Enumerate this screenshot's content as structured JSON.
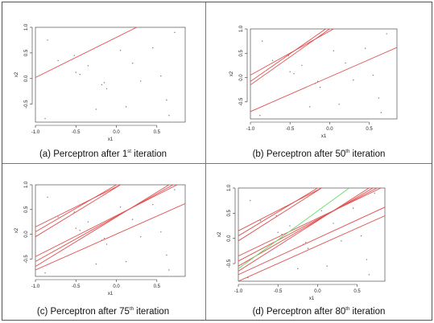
{
  "chart_data": [
    {
      "type": "scatter",
      "caption_prefix": "(a)  Perceptron after 1",
      "caption_ordinal": "st",
      "caption_suffix": " iteration",
      "xlabel": "x1",
      "ylabel": "x2",
      "xlim": [
        -1.0,
        0.85
      ],
      "ylim": [
        -0.85,
        1.0
      ],
      "xticks": [
        "-1.0",
        "-0.5",
        "0.0",
        "0.5"
      ],
      "yticks": [
        "-0.5",
        "0.0",
        "0.5",
        "1.0"
      ],
      "points": [
        [
          -0.85,
          0.75
        ],
        [
          -0.72,
          0.35
        ],
        [
          -0.52,
          0.45
        ],
        [
          -0.5,
          0.12
        ],
        [
          -0.45,
          0.08
        ],
        [
          -0.25,
          -0.6
        ],
        [
          -0.18,
          -0.12
        ],
        [
          -0.15,
          -0.08
        ],
        [
          -0.12,
          -0.2
        ],
        [
          0.05,
          0.55
        ],
        [
          0.12,
          -0.55
        ],
        [
          0.3,
          -0.05
        ],
        [
          0.45,
          0.6
        ],
        [
          0.55,
          0.05
        ],
        [
          0.62,
          -0.42
        ],
        [
          0.65,
          -0.72
        ],
        [
          0.72,
          0.9
        ],
        [
          -0.88,
          -0.78
        ],
        [
          -0.35,
          0.25
        ],
        [
          0.2,
          0.3
        ]
      ],
      "lines": [
        {
          "color": "#e05050",
          "points": [
            [
              -1.0,
              0.02
            ],
            [
              0.25,
              1.0
            ]
          ]
        }
      ]
    },
    {
      "type": "scatter",
      "caption_prefix": "(b)  Perceptron after 50",
      "caption_ordinal": "th",
      "caption_suffix": " iteration",
      "xlabel": "x1",
      "ylabel": "x2",
      "xlim": [
        -1.0,
        0.85
      ],
      "ylim": [
        -0.85,
        1.0
      ],
      "xticks": [
        "-1.0",
        "-0.5",
        "0.0",
        "0.5"
      ],
      "yticks": [
        "-0.5",
        "0.0",
        "0.5",
        "1.0"
      ],
      "points": [
        [
          -0.85,
          0.75
        ],
        [
          -0.72,
          0.35
        ],
        [
          -0.52,
          0.45
        ],
        [
          -0.5,
          0.12
        ],
        [
          -0.45,
          0.08
        ],
        [
          -0.25,
          -0.6
        ],
        [
          -0.18,
          -0.12
        ],
        [
          -0.15,
          -0.08
        ],
        [
          -0.12,
          -0.2
        ],
        [
          0.05,
          0.55
        ],
        [
          0.12,
          -0.55
        ],
        [
          0.3,
          -0.05
        ],
        [
          0.45,
          0.6
        ],
        [
          0.55,
          0.05
        ],
        [
          0.62,
          -0.42
        ],
        [
          0.65,
          -0.72
        ],
        [
          0.72,
          0.9
        ],
        [
          -0.88,
          -0.78
        ],
        [
          -0.35,
          0.25
        ],
        [
          0.2,
          0.3
        ]
      ],
      "lines": [
        {
          "color": "#e05050",
          "points": [
            [
              -1.0,
              0.05
            ],
            [
              0.05,
              1.0
            ]
          ]
        },
        {
          "color": "#e05050",
          "points": [
            [
              -1.0,
              -0.15
            ],
            [
              0.0,
              1.0
            ]
          ]
        },
        {
          "color": "#e05050",
          "points": [
            [
              -1.0,
              -0.08
            ],
            [
              -0.05,
              1.0
            ]
          ]
        },
        {
          "color": "#e05050",
          "points": [
            [
              -1.0,
              -0.7
            ],
            [
              0.85,
              0.62
            ]
          ]
        }
      ]
    },
    {
      "type": "scatter",
      "caption_prefix": "(c)  Perceptron after 75",
      "caption_ordinal": "th",
      "caption_suffix": " iteration",
      "xlabel": "x1",
      "ylabel": "x2",
      "xlim": [
        -1.0,
        0.85
      ],
      "ylim": [
        -0.85,
        1.0
      ],
      "xticks": [
        "-1.0",
        "-0.5",
        "0.0",
        "0.5"
      ],
      "yticks": [
        "-0.5",
        "0.0",
        "0.5",
        "1.0"
      ],
      "points": [
        [
          -0.85,
          0.75
        ],
        [
          -0.72,
          0.35
        ],
        [
          -0.52,
          0.45
        ],
        [
          -0.5,
          0.12
        ],
        [
          -0.45,
          0.08
        ],
        [
          -0.25,
          -0.6
        ],
        [
          -0.18,
          -0.12
        ],
        [
          -0.15,
          -0.08
        ],
        [
          -0.12,
          -0.2
        ],
        [
          0.05,
          0.55
        ],
        [
          0.12,
          -0.55
        ],
        [
          0.3,
          -0.05
        ],
        [
          0.45,
          0.6
        ],
        [
          0.55,
          0.05
        ],
        [
          0.62,
          -0.42
        ],
        [
          0.65,
          -0.72
        ],
        [
          0.72,
          0.9
        ],
        [
          -0.88,
          -0.78
        ],
        [
          -0.35,
          0.25
        ],
        [
          0.2,
          0.3
        ]
      ],
      "lines": [
        {
          "color": "#e05050",
          "points": [
            [
              -1.0,
              0.15
            ],
            [
              0.05,
              1.0
            ]
          ]
        },
        {
          "color": "#e05050",
          "points": [
            [
              -1.0,
              0.05
            ],
            [
              0.0,
              1.0
            ]
          ]
        },
        {
          "color": "#e05050",
          "points": [
            [
              -1.0,
              -0.05
            ],
            [
              0.05,
              1.0
            ]
          ]
        },
        {
          "color": "#e05050",
          "points": [
            [
              -1.0,
              -0.72
            ],
            [
              0.85,
              0.62
            ]
          ]
        },
        {
          "color": "#e05050",
          "points": [
            [
              -1.0,
              -0.65
            ],
            [
              0.65,
              1.0
            ]
          ]
        },
        {
          "color": "#e05050",
          "points": [
            [
              -1.0,
              -0.55
            ],
            [
              0.7,
              1.0
            ]
          ]
        },
        {
          "color": "#e05050",
          "points": [
            [
              -1.0,
              -0.45
            ],
            [
              0.75,
              1.0
            ]
          ]
        }
      ]
    },
    {
      "type": "scatter",
      "caption_prefix": "(d)  Perceptron after 80",
      "caption_ordinal": "th",
      "caption_suffix": " iteration",
      "xlabel": "x1",
      "ylabel": "x2",
      "xlim": [
        -1.0,
        0.85
      ],
      "ylim": [
        -0.85,
        1.0
      ],
      "xticks": [
        "-1.0",
        "-0.5",
        "0.0",
        "0.5"
      ],
      "yticks": [
        "-0.5",
        "0.0",
        "0.5",
        "1.0"
      ],
      "points": [
        [
          -0.85,
          0.75
        ],
        [
          -0.72,
          0.35
        ],
        [
          -0.52,
          0.45
        ],
        [
          -0.5,
          0.12
        ],
        [
          -0.45,
          0.08
        ],
        [
          -0.25,
          -0.6
        ],
        [
          -0.18,
          -0.12
        ],
        [
          -0.15,
          -0.08
        ],
        [
          -0.12,
          -0.2
        ],
        [
          0.05,
          0.55
        ],
        [
          0.12,
          -0.55
        ],
        [
          0.3,
          -0.05
        ],
        [
          0.45,
          0.6
        ],
        [
          0.55,
          0.05
        ],
        [
          0.62,
          -0.42
        ],
        [
          0.65,
          -0.72
        ],
        [
          0.72,
          0.9
        ],
        [
          -0.88,
          -0.78
        ],
        [
          -0.35,
          0.25
        ],
        [
          0.2,
          0.3
        ]
      ],
      "lines": [
        {
          "color": "#e05050",
          "points": [
            [
              -1.0,
              0.15
            ],
            [
              0.05,
              1.0
            ]
          ]
        },
        {
          "color": "#e05050",
          "points": [
            [
              -1.0,
              0.05
            ],
            [
              0.0,
              1.0
            ]
          ]
        },
        {
          "color": "#e05050",
          "points": [
            [
              -1.0,
              -0.05
            ],
            [
              0.05,
              1.0
            ]
          ]
        },
        {
          "color": "#e05050",
          "points": [
            [
              -1.0,
              -0.72
            ],
            [
              0.85,
              0.62
            ]
          ]
        },
        {
          "color": "#e05050",
          "points": [
            [
              -1.0,
              -0.65
            ],
            [
              0.65,
              1.0
            ]
          ]
        },
        {
          "color": "#e05050",
          "points": [
            [
              -1.0,
              -0.55
            ],
            [
              0.7,
              1.0
            ]
          ]
        },
        {
          "color": "#e05050",
          "points": [
            [
              -1.0,
              -0.45
            ],
            [
              0.75,
              1.0
            ]
          ]
        },
        {
          "color": "#e05050",
          "points": [
            [
              -1.0,
              -0.35
            ],
            [
              0.8,
              1.0
            ]
          ]
        },
        {
          "color": "#e05050",
          "points": [
            [
              -1.0,
              -0.85
            ],
            [
              0.85,
              0.45
            ]
          ]
        },
        {
          "color": "#66dd66",
          "points": [
            [
              -1.0,
              -0.6
            ],
            [
              0.4,
              1.0
            ]
          ]
        }
      ]
    }
  ]
}
